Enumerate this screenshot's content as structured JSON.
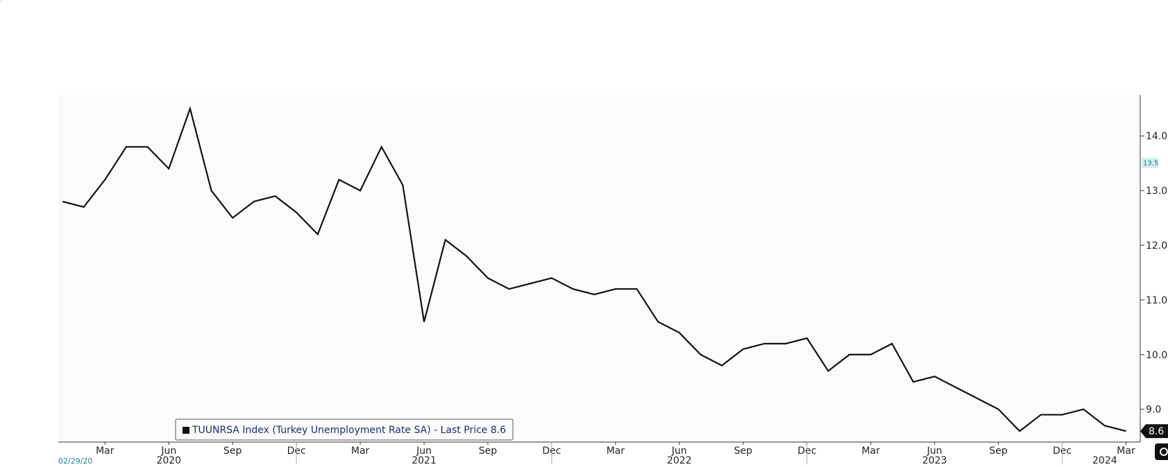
{
  "chart_data": {
    "type": "line",
    "series": [
      {
        "name": "TUUNRSA Index",
        "color": "#111111",
        "x": [
          "2020-01",
          "2020-02",
          "2020-03",
          "2020-04",
          "2020-05",
          "2020-06",
          "2020-07",
          "2020-08",
          "2020-09",
          "2020-10",
          "2020-11",
          "2020-12",
          "2021-01",
          "2021-02",
          "2021-03",
          "2021-04",
          "2021-05",
          "2021-06",
          "2021-07",
          "2021-08",
          "2021-09",
          "2021-10",
          "2021-11",
          "2021-12",
          "2022-01",
          "2022-02",
          "2022-03",
          "2022-04",
          "2022-05",
          "2022-06",
          "2022-07",
          "2022-08",
          "2022-09",
          "2022-10",
          "2022-11",
          "2022-12",
          "2023-01",
          "2023-02",
          "2023-03",
          "2023-04",
          "2023-05",
          "2023-06",
          "2023-07",
          "2023-08",
          "2023-09",
          "2023-10",
          "2023-11",
          "2023-12",
          "2024-01",
          "2024-02",
          "2024-03"
        ],
        "values": [
          12.8,
          12.7,
          13.2,
          13.8,
          13.8,
          13.4,
          14.5,
          13.0,
          12.5,
          12.8,
          12.9,
          12.6,
          12.2,
          13.2,
          13.0,
          13.8,
          13.1,
          10.6,
          12.1,
          11.8,
          11.4,
          11.2,
          11.3,
          11.4,
          11.2,
          11.1,
          11.2,
          11.2,
          10.6,
          10.4,
          10.0,
          9.8,
          10.1,
          10.2,
          10.2,
          10.3,
          9.7,
          10.0,
          10.0,
          10.2,
          9.5,
          9.6,
          9.4,
          9.2,
          9.0,
          8.6,
          8.9,
          8.9,
          9.0,
          8.7,
          8.6
        ]
      }
    ],
    "ylim": [
      8.4,
      14.75
    ],
    "y_ticks": [
      "9.0",
      "10.0",
      "11.0",
      "12.0",
      "13.0",
      "14.0"
    ],
    "x_tick_labels": [
      {
        "date": "2020-03",
        "label": "Mar"
      },
      {
        "date": "2020-06",
        "label": "Jun"
      },
      {
        "date": "2020-09",
        "label": "Sep"
      },
      {
        "date": "2020-12",
        "label": "Dec"
      },
      {
        "date": "2021-03",
        "label": "Mar"
      },
      {
        "date": "2021-06",
        "label": "Jun"
      },
      {
        "date": "2021-09",
        "label": "Sep"
      },
      {
        "date": "2021-12",
        "label": "Dec"
      },
      {
        "date": "2022-03",
        "label": "Mar"
      },
      {
        "date": "2022-06",
        "label": "Jun"
      },
      {
        "date": "2022-09",
        "label": "Sep"
      },
      {
        "date": "2022-12",
        "label": "Dec"
      },
      {
        "date": "2023-03",
        "label": "Mar"
      },
      {
        "date": "2023-06",
        "label": "Jun"
      },
      {
        "date": "2023-09",
        "label": "Sep"
      },
      {
        "date": "2023-12",
        "label": "Dec"
      },
      {
        "date": "2024-03",
        "label": "Mar"
      }
    ],
    "year_labels": [
      {
        "date": "2020-06",
        "label": "2020"
      },
      {
        "date": "2021-06",
        "label": "2021"
      },
      {
        "date": "2022-06",
        "label": "2022"
      },
      {
        "date": "2023-06",
        "label": "2023"
      },
      {
        "date": "2024-02",
        "label": "2024"
      }
    ],
    "year_dividers": [
      "2020-12",
      "2021-12",
      "2022-12",
      "2023-12"
    ],
    "start_date_label": "02/29/20",
    "marker_label": {
      "value": 13.5,
      "text": "13.5"
    },
    "last_value_label": "8.6",
    "legend": {
      "text": "TUUNRSA Index (Turkey Unemployment Rate SA) - Last Price 8.6",
      "placement": "bottom-left"
    },
    "grid": false,
    "colors": {
      "line": "#111111",
      "plot_bg": "#fbfbfb",
      "marker_bg": "#d3eef0",
      "marker_text": "#1d7f86",
      "legend_text": "#1c2f6b"
    }
  }
}
